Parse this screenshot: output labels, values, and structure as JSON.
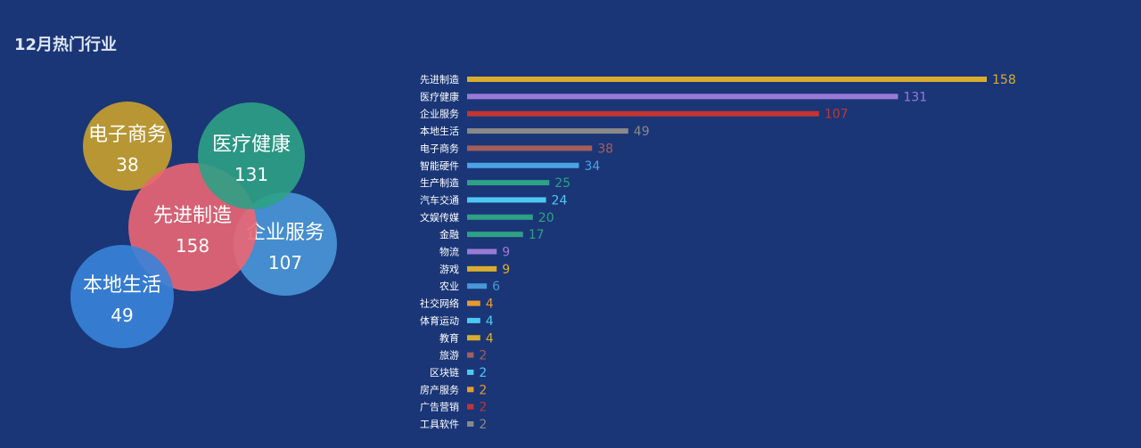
{
  "title": "12月热门行业",
  "chart_data": [
    {
      "type": "bubble",
      "title": "12月热门行业",
      "items": [
        {
          "name": "电子商务",
          "value": 38,
          "color": "#c9a12b"
        },
        {
          "name": "医疗健康",
          "value": 131,
          "color": "#2ea185"
        },
        {
          "name": "企业服务",
          "value": 107,
          "color": "#4a97d8"
        },
        {
          "name": "先进制造",
          "value": 158,
          "color": "#eb6673"
        },
        {
          "name": "本地生活",
          "value": 49,
          "color": "#3883d9"
        }
      ]
    },
    {
      "type": "bar",
      "orientation": "horizontal",
      "categories": [
        "先进制造",
        "医疗健康",
        "企业服务",
        "本地生活",
        "电子商务",
        "智能硬件",
        "生产制造",
        "汽车交通",
        "文娱传媒",
        "金融",
        "物流",
        "游戏",
        "农业",
        "社交网络",
        "体育运动",
        "教育",
        "旅游",
        "区块链",
        "房产服务",
        "广告营销",
        "工具软件"
      ],
      "values": [
        158,
        131,
        107,
        49,
        38,
        34,
        25,
        24,
        20,
        17,
        9,
        9,
        6,
        4,
        4,
        4,
        2,
        2,
        2,
        2,
        2
      ],
      "colors": [
        "#d9ad2f",
        "#9a7ad6",
        "#c23531",
        "#898989",
        "#a65e5a",
        "#4aa3e6",
        "#2ea185",
        "#4ec8f2",
        "#2ea185",
        "#2ea185",
        "#9a7ad6",
        "#d9ad2f",
        "#4a97d8",
        "#e89a2f",
        "#4ec8f2",
        "#d9ad2f",
        "#a65e5a",
        "#4ec8f2",
        "#e89a2f",
        "#c23531",
        "#898989"
      ],
      "xlim": [
        0,
        158
      ]
    }
  ]
}
